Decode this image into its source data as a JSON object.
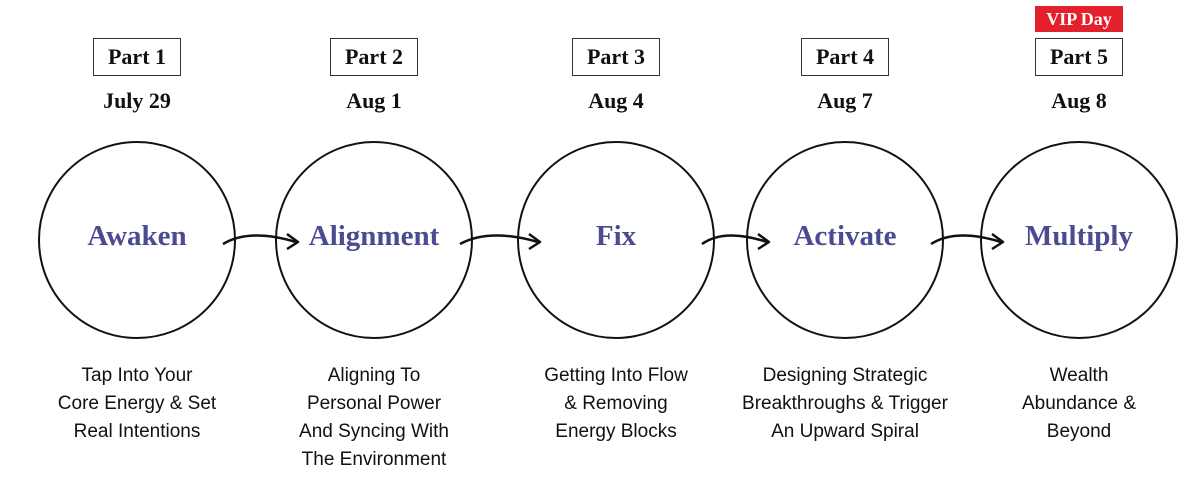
{
  "steps": [
    {
      "part": "Part 1",
      "date": "July 29",
      "title": "Awaken",
      "description": [
        "Tap Into Your",
        "Core Energy & Set",
        "Real Intentions"
      ]
    },
    {
      "part": "Part 2",
      "date": "Aug 1",
      "title": "Alignment",
      "description": [
        "Aligning To",
        "Personal Power",
        "And Syncing With",
        "The Environment"
      ]
    },
    {
      "part": "Part 3",
      "date": "Aug 4",
      "title": "Fix",
      "description": [
        "Getting Into Flow",
        "& Removing",
        "Energy Blocks"
      ]
    },
    {
      "part": "Part 4",
      "date": "Aug 7",
      "title": "Activate",
      "description": [
        "Designing Strategic",
        "Breakthroughs & Trigger",
        "An Upward Spiral"
      ]
    },
    {
      "part": "Part 5",
      "date": "Aug 8",
      "title": "Multiply",
      "badge": "VIP Day",
      "description": [
        "Wealth",
        "Abundance &",
        "Beyond"
      ]
    }
  ]
}
